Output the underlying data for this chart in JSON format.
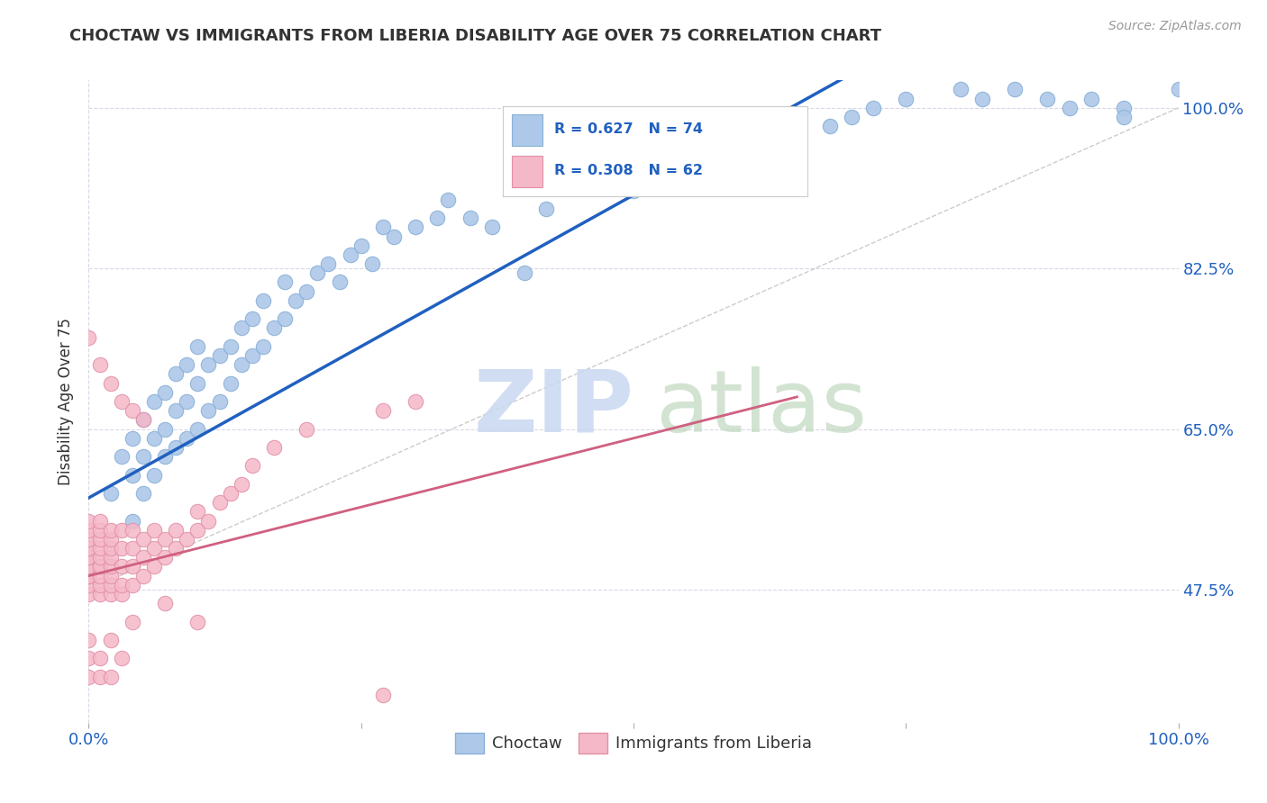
{
  "title": "CHOCTAW VS IMMIGRANTS FROM LIBERIA DISABILITY AGE OVER 75 CORRELATION CHART",
  "source": "Source: ZipAtlas.com",
  "ylabel": "Disability Age Over 75",
  "legend_label1": "Choctaw",
  "legend_label2": "Immigrants from Liberia",
  "r1": 0.627,
  "n1": 74,
  "r2": 0.308,
  "n2": 62,
  "color1": "#adc8e8",
  "color2": "#f5b8c8",
  "line1_color": "#2060c0",
  "line2_color": "#d06080",
  "diagonal_color": "#cccccc",
  "ytick_vals": [
    0.475,
    0.65,
    0.825,
    1.0
  ],
  "ytick_labels": [
    "47.5%",
    "65.0%",
    "82.5%",
    "100.0%"
  ],
  "xlim": [
    0.0,
    1.0
  ],
  "ylim": [
    0.33,
    1.03
  ],
  "choctaw_x": [
    0.02,
    0.03,
    0.04,
    0.04,
    0.04,
    0.05,
    0.05,
    0.05,
    0.06,
    0.06,
    0.06,
    0.07,
    0.07,
    0.07,
    0.08,
    0.08,
    0.08,
    0.09,
    0.09,
    0.09,
    0.1,
    0.1,
    0.1,
    0.11,
    0.11,
    0.12,
    0.12,
    0.13,
    0.13,
    0.14,
    0.14,
    0.15,
    0.15,
    0.16,
    0.16,
    0.17,
    0.18,
    0.18,
    0.19,
    0.2,
    0.21,
    0.22,
    0.23,
    0.24,
    0.25,
    0.26,
    0.27,
    0.28,
    0.3,
    0.32,
    0.33,
    0.35,
    0.37,
    0.4,
    0.42,
    0.5,
    0.52,
    0.55,
    0.6,
    0.62,
    0.65,
    0.68,
    0.7,
    0.72,
    0.75,
    0.8,
    0.82,
    0.85,
    0.88,
    0.9,
    0.92,
    0.95,
    0.95,
    1.0
  ],
  "choctaw_y": [
    0.58,
    0.62,
    0.55,
    0.6,
    0.64,
    0.58,
    0.62,
    0.66,
    0.6,
    0.64,
    0.68,
    0.62,
    0.65,
    0.69,
    0.63,
    0.67,
    0.71,
    0.64,
    0.68,
    0.72,
    0.65,
    0.7,
    0.74,
    0.67,
    0.72,
    0.68,
    0.73,
    0.7,
    0.74,
    0.72,
    0.76,
    0.73,
    0.77,
    0.74,
    0.79,
    0.76,
    0.77,
    0.81,
    0.79,
    0.8,
    0.82,
    0.83,
    0.81,
    0.84,
    0.85,
    0.83,
    0.87,
    0.86,
    0.87,
    0.88,
    0.9,
    0.88,
    0.87,
    0.82,
    0.89,
    0.91,
    0.93,
    0.94,
    0.95,
    0.96,
    0.97,
    0.98,
    0.99,
    1.0,
    1.01,
    1.02,
    1.01,
    1.02,
    1.01,
    1.0,
    1.01,
    1.0,
    0.99,
    1.02
  ],
  "choctaw_y_outliers": [
    [
      0.25,
      0.92
    ],
    [
      0.3,
      0.88
    ],
    [
      0.33,
      0.84
    ],
    [
      0.22,
      0.86
    ],
    [
      0.15,
      0.84
    ],
    [
      0.1,
      0.8
    ]
  ],
  "liberia_x": [
    0.0,
    0.0,
    0.0,
    0.0,
    0.0,
    0.0,
    0.0,
    0.0,
    0.0,
    0.0,
    0.0,
    0.0,
    0.0,
    0.01,
    0.01,
    0.01,
    0.01,
    0.01,
    0.01,
    0.01,
    0.01,
    0.01,
    0.01,
    0.02,
    0.02,
    0.02,
    0.02,
    0.02,
    0.02,
    0.02,
    0.02,
    0.03,
    0.03,
    0.03,
    0.03,
    0.03,
    0.04,
    0.04,
    0.04,
    0.04,
    0.05,
    0.05,
    0.05,
    0.06,
    0.06,
    0.06,
    0.07,
    0.07,
    0.08,
    0.08,
    0.09,
    0.1,
    0.1,
    0.11,
    0.12,
    0.13,
    0.14,
    0.15,
    0.17,
    0.2,
    0.27,
    0.3
  ],
  "liberia_y": [
    0.47,
    0.48,
    0.49,
    0.49,
    0.5,
    0.5,
    0.51,
    0.51,
    0.52,
    0.52,
    0.53,
    0.54,
    0.55,
    0.47,
    0.48,
    0.49,
    0.5,
    0.5,
    0.51,
    0.52,
    0.53,
    0.54,
    0.55,
    0.47,
    0.48,
    0.49,
    0.5,
    0.51,
    0.52,
    0.53,
    0.54,
    0.47,
    0.48,
    0.5,
    0.52,
    0.54,
    0.48,
    0.5,
    0.52,
    0.54,
    0.49,
    0.51,
    0.53,
    0.5,
    0.52,
    0.54,
    0.51,
    0.53,
    0.52,
    0.54,
    0.53,
    0.54,
    0.56,
    0.55,
    0.57,
    0.58,
    0.59,
    0.61,
    0.63,
    0.65,
    0.67,
    0.68
  ],
  "liberia_extra_x": [
    0.0,
    0.0,
    0.0,
    0.01,
    0.01,
    0.02,
    0.02,
    0.03,
    0.04,
    0.07,
    0.1,
    0.27
  ],
  "liberia_extra_y": [
    0.38,
    0.4,
    0.42,
    0.38,
    0.4,
    0.38,
    0.42,
    0.4,
    0.44,
    0.46,
    0.44,
    0.36
  ],
  "liberia_high_x": [
    0.0,
    0.01,
    0.02,
    0.03,
    0.04,
    0.05
  ],
  "liberia_high_y": [
    0.75,
    0.72,
    0.7,
    0.68,
    0.67,
    0.66
  ]
}
